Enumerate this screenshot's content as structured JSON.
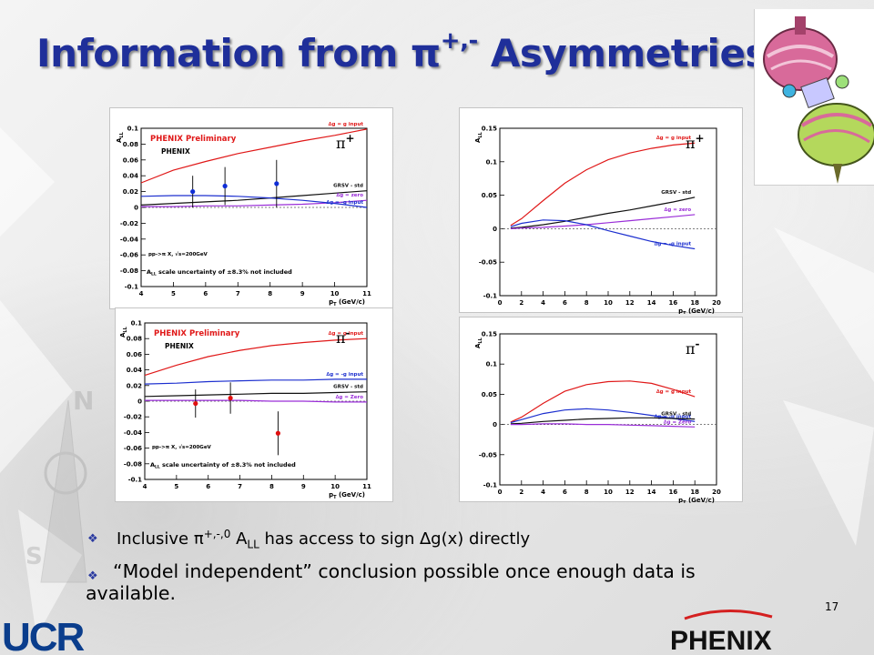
{
  "slide": {
    "title_main": "Information from π",
    "title_sup": "+,-",
    "title_end": " Asymmetries",
    "page_number": "17",
    "footer_logo_left": "UCR",
    "footer_logo_right": "PHENIX"
  },
  "bullets": [
    {
      "pre": "Inclusive π",
      "sup": "+,-,0",
      "mid": " A",
      "sub": "LL",
      "post": " has access to sign ∆g(x) directly"
    },
    {
      "text_a": "“Model independent” conclusion possible once enough data is",
      "text_b": "available."
    }
  ],
  "colors": {
    "title": "#1f2f9a",
    "red": "#e01818",
    "blue": "#1c2fcf",
    "black": "#111111",
    "violet": "#9a2ed8",
    "data_blue": "#0f2dd6",
    "data_red": "#e01010"
  },
  "chart_data": [
    {
      "type": "scatter",
      "panel": "top-left",
      "header": "PHENIX Preliminary",
      "logo": "PHENIX",
      "particle": "π",
      "charge": "+",
      "process": "pp->π X, √s=200GeV",
      "scale_note": "A",
      "scale_note_sub": "LL",
      "scale_note_rest": " scale uncertainty of ±8.3% not included",
      "xlabel": "p",
      "xlabel_sub": "T",
      "xlabel_unit": " (GeV/c)",
      "ylabel": "A",
      "ylabel_sub": "LL",
      "xlim": [
        4,
        11
      ],
      "ylim": [
        -0.1,
        0.1
      ],
      "xticks": [
        4,
        5,
        6,
        7,
        8,
        9,
        10,
        11
      ],
      "yticks": [
        -0.1,
        -0.08,
        -0.06,
        -0.04,
        -0.02,
        0,
        0.02,
        0.04,
        0.06,
        0.08,
        0.1
      ],
      "data_points": {
        "x": [
          5.6,
          6.6,
          8.2
        ],
        "y": [
          0.02,
          0.027,
          0.03
        ],
        "yerr": [
          0.02,
          0.024,
          0.03
        ]
      },
      "series": [
        {
          "name": "∆g = g input",
          "x": [
            4,
            5,
            6,
            7,
            8,
            9,
            10,
            11
          ],
          "y": [
            0.031,
            0.047,
            0.058,
            0.068,
            0.076,
            0.084,
            0.091,
            0.099
          ]
        },
        {
          "name": "GRSV - std",
          "x": [
            4,
            5,
            6,
            7,
            8,
            9,
            10,
            11
          ],
          "y": [
            0.003,
            0.005,
            0.007,
            0.009,
            0.012,
            0.015,
            0.018,
            0.021
          ]
        },
        {
          "name": "∆g = zero",
          "x": [
            4,
            5,
            6,
            7,
            8,
            9,
            10,
            11
          ],
          "y": [
            0.001,
            0.001,
            0.002,
            0.002,
            0.003,
            0.004,
            0.006,
            0.009
          ]
        },
        {
          "name": "∆g = -g input",
          "x": [
            4,
            5,
            6,
            7,
            8,
            9,
            10,
            11
          ],
          "y": [
            0.014,
            0.015,
            0.015,
            0.014,
            0.012,
            0.009,
            0.005,
            0.0
          ]
        }
      ]
    },
    {
      "type": "line",
      "panel": "top-right",
      "particle": "π",
      "charge": "+",
      "xlabel": "p",
      "xlabel_sub": "T",
      "xlabel_unit": " (GeV/c)",
      "ylabel": "A",
      "ylabel_sub": "LL",
      "xlim": [
        0,
        20
      ],
      "ylim": [
        -0.1,
        0.15
      ],
      "xticks": [
        0,
        2,
        4,
        6,
        8,
        10,
        12,
        14,
        16,
        18,
        20
      ],
      "yticks": [
        -0.1,
        -0.05,
        0,
        0.05,
        0.1,
        0.15
      ],
      "series": [
        {
          "name": "∆g = g input",
          "x": [
            1,
            2,
            4,
            6,
            8,
            10,
            12,
            14,
            16,
            18
          ],
          "y": [
            0.005,
            0.015,
            0.042,
            0.068,
            0.088,
            0.103,
            0.113,
            0.12,
            0.125,
            0.128
          ]
        },
        {
          "name": "GRSV - std",
          "x": [
            1,
            2,
            4,
            6,
            8,
            10,
            12,
            14,
            16,
            18
          ],
          "y": [
            0.001,
            0.002,
            0.006,
            0.011,
            0.017,
            0.023,
            0.028,
            0.034,
            0.04,
            0.047
          ]
        },
        {
          "name": "∆g = zero",
          "x": [
            1,
            2,
            4,
            6,
            8,
            10,
            12,
            14,
            16,
            18
          ],
          "y": [
            0.0,
            0.001,
            0.002,
            0.004,
            0.006,
            0.009,
            0.012,
            0.015,
            0.018,
            0.021
          ]
        },
        {
          "name": "∆g = -g input",
          "x": [
            1,
            2,
            4,
            6,
            8,
            10,
            12,
            14,
            16,
            18
          ],
          "y": [
            0.003,
            0.008,
            0.013,
            0.012,
            0.006,
            -0.003,
            -0.011,
            -0.019,
            -0.025,
            -0.03
          ]
        }
      ]
    },
    {
      "type": "scatter",
      "panel": "bottom-left",
      "header": "PHENIX Preliminary",
      "logo": "PHENIX",
      "particle": "π",
      "charge": "-",
      "process": "pp->π X, √s=200GeV",
      "scale_note": "A",
      "scale_note_sub": "LL",
      "scale_note_rest": " scale uncertainty of ±8.3% not included",
      "xlabel": "p",
      "xlabel_sub": "T",
      "xlabel_unit": " (GeV/c)",
      "ylabel": "A",
      "ylabel_sub": "LL",
      "xlim": [
        4,
        11
      ],
      "ylim": [
        -0.1,
        0.1
      ],
      "xticks": [
        4,
        5,
        6,
        7,
        8,
        9,
        10,
        11
      ],
      "yticks": [
        -0.1,
        -0.08,
        -0.06,
        -0.04,
        -0.02,
        0,
        0.02,
        0.04,
        0.06,
        0.08,
        0.1
      ],
      "data_points": {
        "x": [
          5.6,
          6.7,
          8.2
        ],
        "y": [
          -0.003,
          0.004,
          -0.041
        ],
        "yerr": [
          0.018,
          0.02,
          0.028
        ]
      },
      "series": [
        {
          "name": "∆g = g input",
          "x": [
            4,
            5,
            6,
            7,
            8,
            9,
            10,
            11
          ],
          "y": [
            0.033,
            0.046,
            0.057,
            0.065,
            0.071,
            0.075,
            0.078,
            0.08
          ]
        },
        {
          "name": "∆g = -g input",
          "x": [
            4,
            5,
            6,
            7,
            8,
            9,
            10,
            11
          ],
          "y": [
            0.022,
            0.023,
            0.025,
            0.026,
            0.027,
            0.027,
            0.028,
            0.028
          ]
        },
        {
          "name": "GRSV - std",
          "x": [
            4,
            5,
            6,
            7,
            8,
            9,
            10,
            11
          ],
          "y": [
            0.006,
            0.007,
            0.008,
            0.009,
            0.01,
            0.01,
            0.011,
            0.012
          ]
        },
        {
          "name": "∆g = Zero",
          "x": [
            4,
            5,
            6,
            7,
            8,
            9,
            10,
            11
          ],
          "y": [
            0.001,
            0.001,
            0.001,
            0.001,
            0.0,
            0.0,
            -0.001,
            -0.001
          ]
        }
      ]
    },
    {
      "type": "line",
      "panel": "bottom-right",
      "particle": "π",
      "charge": "-",
      "xlabel": "p",
      "xlabel_sub": "T",
      "xlabel_unit": " (GeV/c)",
      "ylabel": "A",
      "ylabel_sub": "LL",
      "xlim": [
        0,
        20
      ],
      "ylim": [
        -0.1,
        0.15
      ],
      "xticks": [
        0,
        2,
        4,
        6,
        8,
        10,
        12,
        14,
        16,
        18,
        20
      ],
      "yticks": [
        -0.1,
        -0.05,
        0,
        0.05,
        0.1,
        0.15
      ],
      "series": [
        {
          "name": "∆g = g input",
          "x": [
            1,
            2,
            4,
            6,
            8,
            10,
            12,
            14,
            16,
            18
          ],
          "y": [
            0.004,
            0.012,
            0.035,
            0.055,
            0.066,
            0.071,
            0.072,
            0.068,
            0.058,
            0.046
          ]
        },
        {
          "name": "∆g = -g input",
          "x": [
            1,
            2,
            4,
            6,
            8,
            10,
            12,
            14,
            16,
            18
          ],
          "y": [
            0.003,
            0.008,
            0.018,
            0.024,
            0.026,
            0.024,
            0.02,
            0.015,
            0.01,
            0.005
          ]
        },
        {
          "name": "GRSV - std",
          "x": [
            1,
            2,
            4,
            6,
            8,
            10,
            12,
            14,
            16,
            18
          ],
          "y": [
            0.001,
            0.002,
            0.005,
            0.007,
            0.009,
            0.01,
            0.011,
            0.011,
            0.01,
            0.009
          ]
        },
        {
          "name": "∆g = Zero",
          "x": [
            1,
            2,
            4,
            6,
            8,
            10,
            12,
            14,
            16,
            18
          ],
          "y": [
            0.0,
            0.0,
            0.001,
            0.001,
            0.0,
            0.0,
            -0.001,
            -0.002,
            -0.003,
            -0.004
          ]
        }
      ]
    }
  ]
}
